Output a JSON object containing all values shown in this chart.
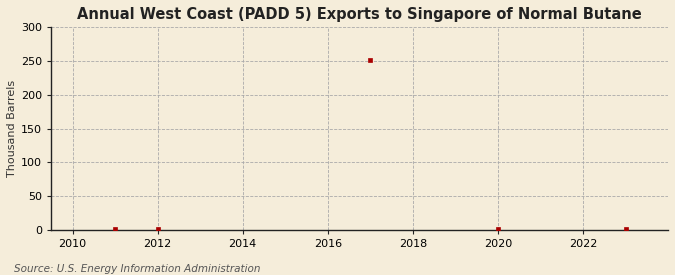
{
  "title": "Annual West Coast (PADD 5) Exports to Singapore of Normal Butane",
  "ylabel": "Thousand Barrels",
  "source": "Source: U.S. Energy Information Administration",
  "background_color": "#f5edda",
  "plot_background_color": "#f5edda",
  "data_points": {
    "2011": 1,
    "2012": 1,
    "2017": 251,
    "2020": 1,
    "2023": 1
  },
  "xlim": [
    2009.5,
    2024.0
  ],
  "ylim": [
    0,
    300
  ],
  "yticks": [
    0,
    50,
    100,
    150,
    200,
    250,
    300
  ],
  "xticks": [
    2010,
    2012,
    2014,
    2016,
    2018,
    2020,
    2022
  ],
  "marker_color": "#aa0000",
  "marker_size": 3.5,
  "grid_color": "#aaaaaa",
  "axis_color": "#222222",
  "title_fontsize": 10.5,
  "label_fontsize": 8,
  "tick_fontsize": 8,
  "source_fontsize": 7.5
}
